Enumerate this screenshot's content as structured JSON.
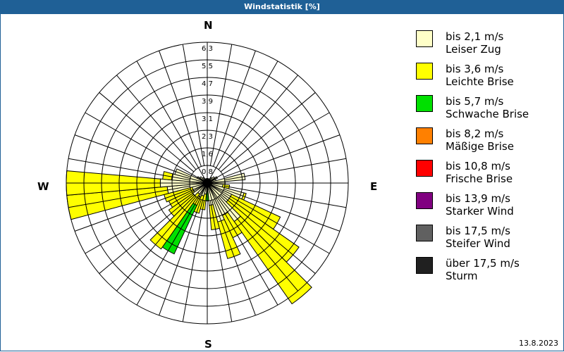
{
  "header": {
    "title": "Windstatistik [%]"
  },
  "directions": {
    "n": "N",
    "e": "E",
    "s": "S",
    "w": "W"
  },
  "footer": {
    "date": "13.8.2023"
  },
  "legend": [
    {
      "range": "bis 2,1 m/s",
      "name": "Leiser Zug",
      "color": "#ffffc8"
    },
    {
      "range": "bis 3,6 m/s",
      "name": "Leichte Brise",
      "color": "#ffff00"
    },
    {
      "range": "bis 5,7 m/s",
      "name": "Schwache Brise",
      "color": "#00e000"
    },
    {
      "range": "bis 8,2 m/s",
      "name": "Mäßige Brise",
      "color": "#ff8000"
    },
    {
      "range": "bis 10,8 m/s",
      "name": "Frische Brise",
      "color": "#ff0000"
    },
    {
      "range": "bis 13,9 m/s",
      "name": "Starker Wind",
      "color": "#800080"
    },
    {
      "range": "bis 17,5 m/s",
      "name": "Steifer Wind",
      "color": "#606060"
    },
    {
      "range": "über 17,5 m/s",
      "name": "Sturm",
      "color": "#202020"
    }
  ],
  "chart_data": {
    "type": "windrose",
    "title": "Windstatistik [%]",
    "unit": "%",
    "rings": [
      0.8,
      1.6,
      2.3,
      3.1,
      3.9,
      4.7,
      5.5,
      6.3
    ],
    "rmax": 6.3,
    "sector_width_deg": 10,
    "series_names": [
      "Leiser Zug",
      "Leichte Brise",
      "Schwache Brise"
    ],
    "sectors": [
      {
        "dir": 60,
        "stack": [
          0.5,
          0,
          0
        ]
      },
      {
        "dir": 70,
        "stack": [
          0.4,
          0,
          0
        ]
      },
      {
        "dir": 80,
        "stack": [
          1.7,
          0,
          0
        ]
      },
      {
        "dir": 90,
        "stack": [
          0.8,
          0,
          0
        ]
      },
      {
        "dir": 100,
        "stack": [
          0.7,
          0.3,
          0
        ]
      },
      {
        "dir": 110,
        "stack": [
          1.7,
          0.1,
          0
        ]
      },
      {
        "dir": 120,
        "stack": [
          1.2,
          2.4,
          0
        ]
      },
      {
        "dir": 130,
        "stack": [
          1.2,
          3.8,
          0
        ]
      },
      {
        "dir": 140,
        "stack": [
          2.1,
          4.5,
          0
        ]
      },
      {
        "dir": 150,
        "stack": [
          1.6,
          1.1,
          0
        ]
      },
      {
        "dir": 160,
        "stack": [
          1.8,
          1.7,
          0
        ]
      },
      {
        "dir": 170,
        "stack": [
          1.0,
          1.1,
          0
        ]
      },
      {
        "dir": 180,
        "stack": [
          0.3,
          0,
          0.5
        ]
      },
      {
        "dir": 190,
        "stack": [
          0.5,
          0.7,
          0
        ]
      },
      {
        "dir": 200,
        "stack": [
          0.6,
          0.8,
          0
        ]
      },
      {
        "dir": 210,
        "stack": [
          0.7,
          0.4,
          2.4
        ]
      },
      {
        "dir": 220,
        "stack": [
          0.6,
          3.0,
          0
        ]
      },
      {
        "dir": 230,
        "stack": [
          0.8,
          1.3,
          0
        ]
      },
      {
        "dir": 240,
        "stack": [
          0.7,
          1.2,
          0
        ]
      },
      {
        "dir": 250,
        "stack": [
          0.7,
          1.3,
          0
        ]
      },
      {
        "dir": 260,
        "stack": [
          1.8,
          4.5,
          0
        ]
      },
      {
        "dir": 270,
        "stack": [
          2.1,
          4.2,
          0
        ]
      },
      {
        "dir": 280,
        "stack": [
          1.6,
          0.4,
          0
        ]
      },
      {
        "dir": 290,
        "stack": [
          1.5,
          0,
          0
        ]
      },
      {
        "dir": 300,
        "stack": [
          0.5,
          0,
          0
        ]
      },
      {
        "dir": 310,
        "stack": [
          0.4,
          0,
          0
        ]
      },
      {
        "dir": 320,
        "stack": [
          0.3,
          0,
          0
        ]
      },
      {
        "dir": 330,
        "stack": [
          0.2,
          0,
          0
        ]
      },
      {
        "dir": 340,
        "stack": [
          0.2,
          0,
          0
        ]
      },
      {
        "dir": 350,
        "stack": [
          0.2,
          0,
          0
        ]
      },
      {
        "dir": 0,
        "stack": [
          0.2,
          0,
          0
        ]
      },
      {
        "dir": 10,
        "stack": [
          0.2,
          0,
          0
        ]
      },
      {
        "dir": 20,
        "stack": [
          0.2,
          0,
          0
        ]
      },
      {
        "dir": 30,
        "stack": [
          0.2,
          0,
          0
        ]
      },
      {
        "dir": 40,
        "stack": [
          0.3,
          0,
          0
        ]
      },
      {
        "dir": 50,
        "stack": [
          0.4,
          0,
          0
        ]
      }
    ]
  }
}
